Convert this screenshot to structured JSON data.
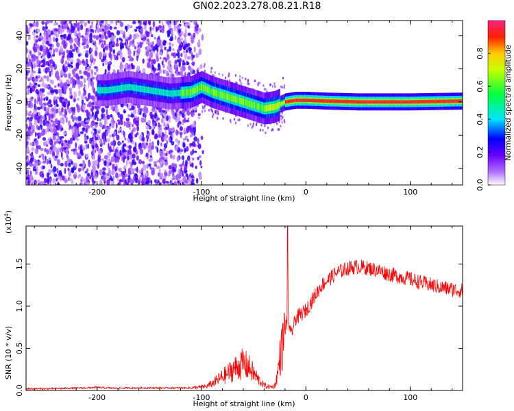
{
  "page_title": "GN02.2023.278.08.21.R18",
  "chart_data": [
    {
      "type": "heatmap",
      "title": "GN02.2023.278.08.21.R18",
      "xlabel": "Height of straight line (km)",
      "ylabel": "Frequency (Hz)",
      "xlim": [
        -268,
        150
      ],
      "ylim": [
        -50,
        49
      ],
      "x_ticks": [
        -200,
        -100,
        0,
        100
      ],
      "x_tick_labels": [
        "-200",
        "-100",
        "0",
        "100"
      ],
      "y_ticks": [
        -40,
        -20,
        0,
        20,
        40
      ],
      "y_tick_labels": [
        "-40",
        "-20",
        "0",
        "20",
        "40"
      ],
      "ridge": {
        "x": [
          -190,
          -170,
          -150,
          -130,
          -110,
          -100,
          -90,
          -80,
          -70,
          -60,
          -50,
          -40,
          -30,
          -20,
          -10,
          0,
          20,
          50,
          100,
          150
        ],
        "y": [
          7,
          9,
          7,
          5,
          6,
          9,
          6,
          4,
          2,
          0,
          -2,
          -4,
          -3,
          0,
          1,
          1,
          0.5,
          0,
          0,
          0.5
        ]
      },
      "colorbar": {
        "label": "Normalized spectral amplitude",
        "range": [
          0,
          1
        ],
        "ticks": [
          0.0,
          0.2,
          0.4,
          0.6,
          0.8
        ],
        "tick_labels": [
          "0.0",
          "0.2",
          "0.4",
          "0.6",
          "0.8"
        ],
        "colors": [
          "#ffffff",
          "#8b00ff",
          "#0000ff",
          "#00ffff",
          "#00ff00",
          "#ffff00",
          "#ff0000",
          "#ff0080"
        ]
      }
    },
    {
      "type": "line",
      "xlabel": "Height of straight line (km)",
      "ylabel": "SNR (10 * v/v)",
      "y_multiplier": "(x10",
      "y_multiplier_exp": "4",
      "y_multiplier_close": ")",
      "xlim": [
        -268,
        150
      ],
      "ylim": [
        0,
        1.95
      ],
      "x_ticks": [
        -200,
        -100,
        0,
        100
      ],
      "x_tick_labels": [
        "-200",
        "-100",
        "0",
        "100"
      ],
      "y_ticks": [
        0,
        0.5,
        1.0,
        1.5
      ],
      "y_tick_labels": [
        "0.0",
        "0.5",
        "1.0",
        "1.5"
      ],
      "grid": false,
      "series": [
        {
          "color": "#ff0000",
          "x": [
            -268,
            -250,
            -230,
            -210,
            -200,
            -190,
            -180,
            -170,
            -150,
            -130,
            -110,
            -100,
            -95,
            -90,
            -85,
            -80,
            -75,
            -70,
            -65,
            -60,
            -55,
            -50,
            -45,
            -40,
            -35,
            -30,
            -27,
            -25,
            -22,
            -20,
            -18,
            -17.5,
            -17,
            -15,
            -12,
            -10,
            -5,
            0,
            5,
            10,
            15,
            20,
            25,
            30,
            40,
            50,
            60,
            70,
            80,
            90,
            100,
            110,
            120,
            130,
            140,
            150
          ],
          "y": [
            0.02,
            0.02,
            0.025,
            0.03,
            0.035,
            0.03,
            0.025,
            0.03,
            0.03,
            0.03,
            0.03,
            0.04,
            0.05,
            0.08,
            0.12,
            0.16,
            0.2,
            0.25,
            0.28,
            0.32,
            0.28,
            0.2,
            0.12,
            0.06,
            0.04,
            0.05,
            0.2,
            0.4,
            0.55,
            0.72,
            0.85,
            1.95,
            0.9,
            0.65,
            0.75,
            0.85,
            0.9,
            0.95,
            1.05,
            1.15,
            1.25,
            1.3,
            1.35,
            1.4,
            1.45,
            1.47,
            1.45,
            1.42,
            1.38,
            1.35,
            1.32,
            1.28,
            1.25,
            1.22,
            1.2,
            1.18
          ]
        }
      ]
    }
  ]
}
